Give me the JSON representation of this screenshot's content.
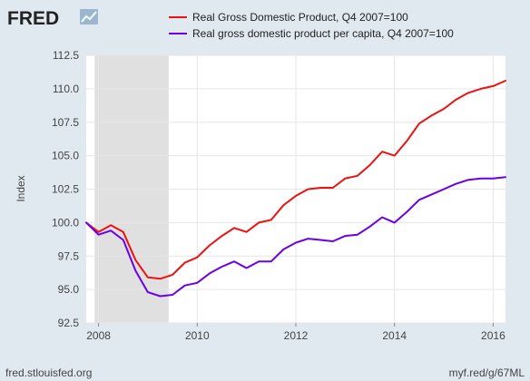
{
  "header": {
    "logo_text": "FRED",
    "logo_icon": "line-chart-icon"
  },
  "footer": {
    "left": "fred.stlouisfed.org",
    "right": "myf.red/g/67ML"
  },
  "colors": {
    "background": "#e1e9f0",
    "plot_background": "#ffffff",
    "recession_shade": "#e0e0e0",
    "series_gdp": "#ee1111",
    "series_per_capita": "#6a00e8",
    "grid": "#e6e6e6"
  },
  "chart_data": {
    "type": "line",
    "title": "",
    "xlabel": "",
    "ylabel": "Index",
    "xlim": [
      2007.75,
      2016.25
    ],
    "ylim": [
      92.5,
      112.5
    ],
    "yticks": [
      "92.5",
      "95.0",
      "97.5",
      "100.0",
      "102.5",
      "105.0",
      "107.5",
      "110.0",
      "112.5"
    ],
    "ytick_values": [
      92.5,
      95.0,
      97.5,
      100.0,
      102.5,
      105.0,
      107.5,
      110.0,
      112.5
    ],
    "xticks": [
      "2008",
      "2010",
      "2012",
      "2014",
      "2016"
    ],
    "xtick_values": [
      2008,
      2010,
      2012,
      2014,
      2016
    ],
    "grid": true,
    "legend_position": "top",
    "recessions": [
      {
        "start": 2007.92,
        "end": 2009.42
      }
    ],
    "x": [
      2007.75,
      2008.0,
      2008.25,
      2008.5,
      2008.75,
      2009.0,
      2009.25,
      2009.5,
      2009.75,
      2010.0,
      2010.25,
      2010.5,
      2010.75,
      2011.0,
      2011.25,
      2011.5,
      2011.75,
      2012.0,
      2012.25,
      2012.5,
      2012.75,
      2013.0,
      2013.25,
      2013.5,
      2013.75,
      2014.0,
      2014.25,
      2014.5,
      2014.75,
      2015.0,
      2015.25,
      2015.5,
      2015.75,
      2016.0,
      2016.25
    ],
    "series": [
      {
        "name": "Real Gross Domestic Product, Q4 2007=100",
        "color": "#ee1111",
        "values": [
          100.0,
          99.3,
          99.8,
          99.3,
          97.2,
          95.9,
          95.8,
          96.1,
          97.0,
          97.4,
          98.3,
          99.0,
          99.6,
          99.3,
          100.0,
          100.2,
          101.3,
          102.0,
          102.5,
          102.6,
          102.6,
          103.3,
          103.5,
          104.3,
          105.3,
          105.0,
          106.1,
          107.4,
          108.0,
          108.5,
          109.2,
          109.7,
          110.0,
          110.2,
          110.6
        ]
      },
      {
        "name": "Real gross domestic product per capita, Q4 2007=100",
        "color": "#6a00e8",
        "values": [
          100.0,
          99.1,
          99.4,
          98.7,
          96.4,
          94.8,
          94.5,
          94.6,
          95.3,
          95.5,
          96.2,
          96.7,
          97.1,
          96.6,
          97.1,
          97.1,
          98.0,
          98.5,
          98.8,
          98.7,
          98.6,
          99.0,
          99.1,
          99.7,
          100.4,
          100.0,
          100.8,
          101.7,
          102.1,
          102.5,
          102.9,
          103.2,
          103.3,
          103.3,
          103.4
        ]
      }
    ]
  }
}
